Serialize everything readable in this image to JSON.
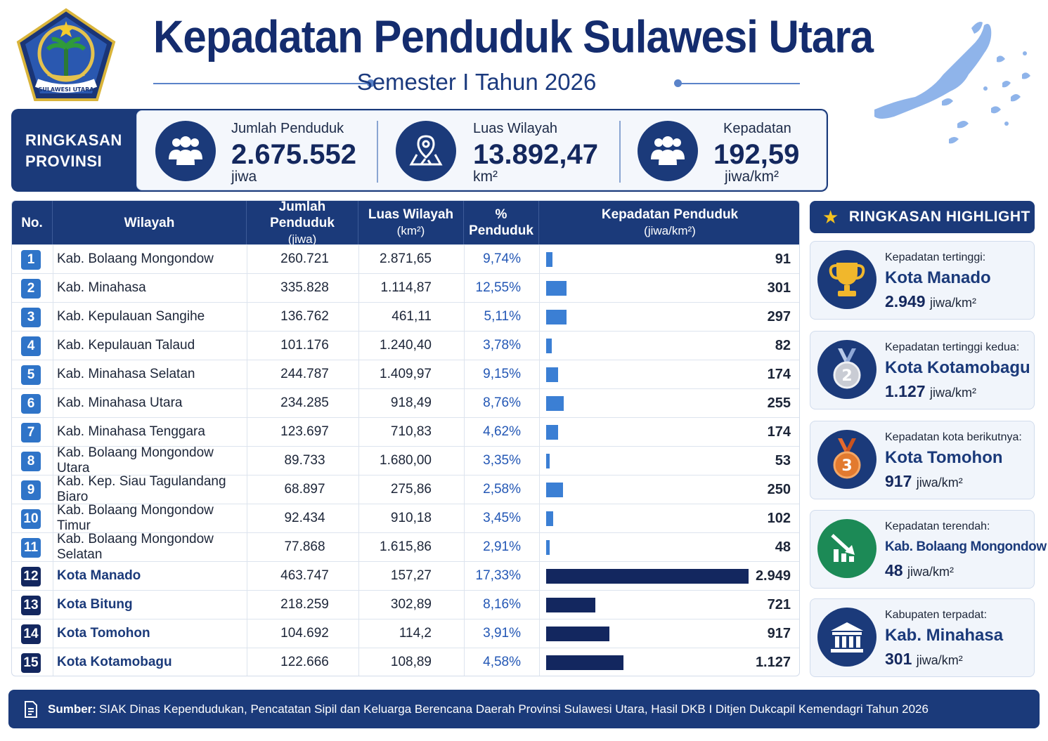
{
  "header": {
    "title": "Kepadatan Penduduk Sulawesi Utara",
    "subtitle": "Semester I Tahun 2026",
    "logo_text": "SULAWESI UTARA"
  },
  "summary": {
    "label_line1": "RINGKASAN",
    "label_line2": "PROVINSI",
    "stats": [
      {
        "label": "Jumlah Penduduk",
        "value": "2.675.552",
        "unit": "jiwa",
        "icon": "people-icon"
      },
      {
        "label": "Luas Wilayah",
        "value": "13.892,47",
        "unit": "km²",
        "icon": "map-pin-icon"
      },
      {
        "label": "Kepadatan",
        "value": "192,59",
        "unit": "jiwa/km²",
        "icon": "people-icon"
      }
    ]
  },
  "table": {
    "headers": {
      "no": "No.",
      "wilayah": "Wilayah",
      "penduduk": "Jumlah Penduduk",
      "penduduk_unit": "(jiwa)",
      "luas": "Luas Wilayah",
      "luas_unit": "(km²)",
      "persen": "% Penduduk",
      "kepadatan": "Kepadatan Penduduk",
      "kepadatan_unit": "(jiwa/km²)"
    }
  },
  "chart_data": {
    "type": "table",
    "title": "Kepadatan Penduduk Sulawesi Utara",
    "columns": [
      "No.",
      "Wilayah",
      "Jumlah Penduduk (jiwa)",
      "Luas Wilayah (km²)",
      "% Penduduk",
      "Kepadatan Penduduk (jiwa/km²)"
    ],
    "bar_scale_max": 2949,
    "rows": [
      {
        "no": "1",
        "wilayah": "Kab. Bolaang Mongondow",
        "penduduk": "260.721",
        "luas": "2.871,65",
        "persen": "9,74%",
        "kepadatan_label": "91",
        "kepadatan": 91,
        "type": "kab"
      },
      {
        "no": "2",
        "wilayah": "Kab. Minahasa",
        "penduduk": "335.828",
        "luas": "1.114,87",
        "persen": "12,55%",
        "kepadatan_label": "301",
        "kepadatan": 301,
        "type": "kab"
      },
      {
        "no": "3",
        "wilayah": "Kab. Kepulauan Sangihe",
        "penduduk": "136.762",
        "luas": "461,11",
        "persen": "5,11%",
        "kepadatan_label": "297",
        "kepadatan": 297,
        "type": "kab"
      },
      {
        "no": "4",
        "wilayah": "Kab. Kepulauan Talaud",
        "penduduk": "101.176",
        "luas": "1.240,40",
        "persen": "3,78%",
        "kepadatan_label": "82",
        "kepadatan": 82,
        "type": "kab"
      },
      {
        "no": "5",
        "wilayah": "Kab. Minahasa Selatan",
        "penduduk": "244.787",
        "luas": "1.409,97",
        "persen": "9,15%",
        "kepadatan_label": "174",
        "kepadatan": 174,
        "type": "kab"
      },
      {
        "no": "6",
        "wilayah": "Kab. Minahasa Utara",
        "penduduk": "234.285",
        "luas": "918,49",
        "persen": "8,76%",
        "kepadatan_label": "255",
        "kepadatan": 255,
        "type": "kab"
      },
      {
        "no": "7",
        "wilayah": "Kab. Minahasa Tenggara",
        "penduduk": "123.697",
        "luas": "710,83",
        "persen": "4,62%",
        "kepadatan_label": "174",
        "kepadatan": 174,
        "type": "kab"
      },
      {
        "no": "8",
        "wilayah": "Kab. Bolaang Mongondow Utara",
        "penduduk": "89.733",
        "luas": "1.680,00",
        "persen": "3,35%",
        "kepadatan_label": "53",
        "kepadatan": 53,
        "type": "kab"
      },
      {
        "no": "9",
        "wilayah": "Kab. Kep. Siau Tagulandang Biaro",
        "penduduk": "68.897",
        "luas": "275,86",
        "persen": "2,58%",
        "kepadatan_label": "250",
        "kepadatan": 250,
        "type": "kab"
      },
      {
        "no": "10",
        "wilayah": "Kab. Bolaang Mongondow Timur",
        "penduduk": "92.434",
        "luas": "910,18",
        "persen": "3,45%",
        "kepadatan_label": "102",
        "kepadatan": 102,
        "type": "kab"
      },
      {
        "no": "11",
        "wilayah": "Kab. Bolaang Mongondow Selatan",
        "penduduk": "77.868",
        "luas": "1.615,86",
        "persen": "2,91%",
        "kepadatan_label": "48",
        "kepadatan": 48,
        "type": "kab"
      },
      {
        "no": "12",
        "wilayah": "Kota Manado",
        "penduduk": "463.747",
        "luas": "157,27",
        "persen": "17,33%",
        "kepadatan_label": "2.949",
        "kepadatan": 2949,
        "type": "kota"
      },
      {
        "no": "13",
        "wilayah": "Kota Bitung",
        "penduduk": "218.259",
        "luas": "302,89",
        "persen": "8,16%",
        "kepadatan_label": "721",
        "kepadatan": 721,
        "type": "kota"
      },
      {
        "no": "14",
        "wilayah": "Kota Tomohon",
        "penduduk": "104.692",
        "luas": "114,2",
        "persen": "3,91%",
        "kepadatan_label": "917",
        "kepadatan": 917,
        "type": "kota"
      },
      {
        "no": "15",
        "wilayah": "Kota Kotamobagu",
        "penduduk": "122.666",
        "luas": "108,89",
        "persen": "4,58%",
        "kepadatan_label": "1.127",
        "kepadatan": 1127,
        "type": "kota"
      }
    ]
  },
  "highlights": {
    "title": "RINGKASAN HIGHLIGHT",
    "items": [
      {
        "key": "Kepadatan tertinggi:",
        "name": "Kota Manado",
        "value": "2.949",
        "unit": "jiwa/km²",
        "icon": "trophy-icon"
      },
      {
        "key": "Kepadatan tertinggi kedua:",
        "name": "Kota Kotamobagu",
        "value": "1.127",
        "unit": "jiwa/km²",
        "icon": "silver-medal-icon"
      },
      {
        "key": "Kepadatan kota berikutnya:",
        "name": "Kota Tomohon",
        "value": "917",
        "unit": "jiwa/km²",
        "icon": "bronze-medal-icon"
      },
      {
        "key": "Kepadatan terendah:",
        "name": "Kab. Bolaang Mongondow Selatan",
        "value": "48",
        "unit": "jiwa/km²",
        "icon": "chart-down-icon"
      },
      {
        "key": "Kabupaten terpadat:",
        "name": "Kab. Minahasa",
        "value": "301",
        "unit": "jiwa/km²",
        "icon": "building-icon"
      }
    ]
  },
  "footer": {
    "label": "Sumber:",
    "text": "SIAK Dinas Kependudukan, Pencatatan Sipil dan Keluarga Berencana Daerah Provinsi Sulawesi Utara, Hasil DKB I Ditjen Dukcapil Kemendagri Tahun 2026"
  },
  "colors": {
    "navy": "#1b3a7a",
    "kab_bar": "#3b7fd4",
    "kota_bar": "#13275f",
    "kab_badge": "#2f74c8",
    "kota_badge": "#13275f"
  }
}
